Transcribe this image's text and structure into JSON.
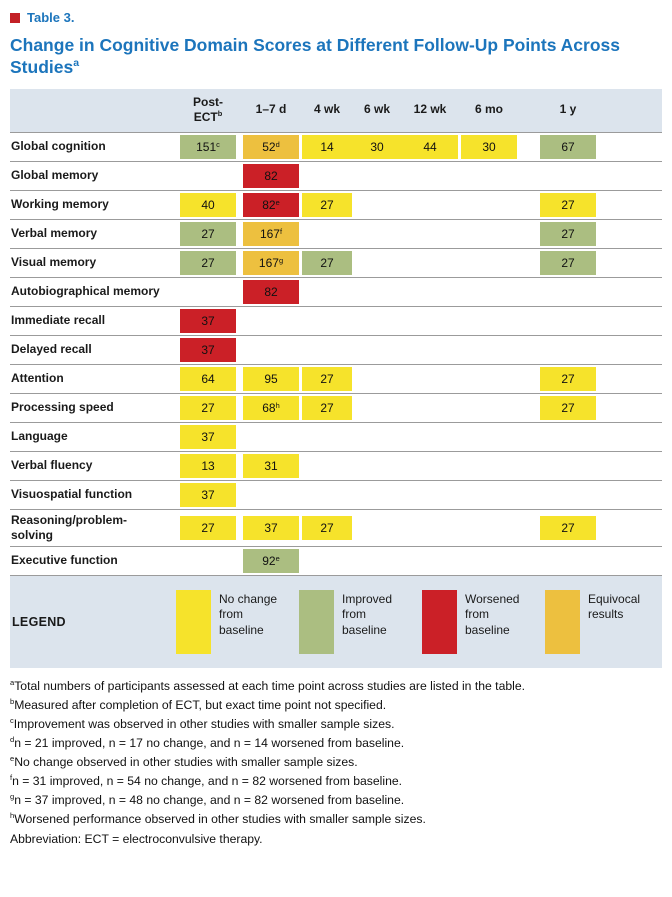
{
  "page": {
    "table_label": "Table 3.",
    "title": "Change in Cognitive Domain Scores at Different Follow-Up Points Across Studies",
    "title_sup": "a"
  },
  "colors": {
    "no_change": "#f6e32b",
    "improved": "#abbe81",
    "worsened": "#cb2027",
    "equivocal": "#edc03f",
    "band_bg": "#dce4ed",
    "title_blue": "#1c75bc",
    "marker_red": "#c32026"
  },
  "table": {
    "columns": [
      {
        "label": "Post-ECT",
        "sup": "b"
      },
      {
        "label": "1–7 d",
        "sup": ""
      },
      {
        "label": "4 wk",
        "sup": ""
      },
      {
        "label": "6 wk",
        "sup": ""
      },
      {
        "label": "12 wk",
        "sup": ""
      },
      {
        "label": "6 mo",
        "sup": ""
      },
      {
        "label": "1 y",
        "sup": ""
      }
    ],
    "rows": [
      {
        "label": "Global cognition",
        "cells": [
          {
            "value": "151",
            "sup": "c",
            "status": "improved"
          },
          {
            "value": "52",
            "sup": "d",
            "status": "equivocal"
          },
          {
            "value": "14",
            "sup": "",
            "status": "no_change"
          },
          {
            "value": "30",
            "sup": "",
            "status": "no_change"
          },
          {
            "value": "44",
            "sup": "",
            "status": "no_change"
          },
          {
            "value": "30",
            "sup": "",
            "status": "no_change"
          },
          {
            "value": "67",
            "sup": "",
            "status": "improved"
          }
        ]
      },
      {
        "label": "Global memory",
        "cells": [
          null,
          {
            "value": "82",
            "sup": "",
            "status": "worsened"
          },
          null,
          null,
          null,
          null,
          null
        ]
      },
      {
        "label": "Working memory",
        "cells": [
          {
            "value": "40",
            "sup": "",
            "status": "no_change"
          },
          {
            "value": "82",
            "sup": "e",
            "status": "worsened"
          },
          {
            "value": "27",
            "sup": "",
            "status": "no_change"
          },
          null,
          null,
          null,
          {
            "value": "27",
            "sup": "",
            "status": "no_change"
          }
        ]
      },
      {
        "label": "Verbal memory",
        "cells": [
          {
            "value": "27",
            "sup": "",
            "status": "improved"
          },
          {
            "value": "167",
            "sup": "f",
            "status": "equivocal"
          },
          null,
          null,
          null,
          null,
          {
            "value": "27",
            "sup": "",
            "status": "improved"
          }
        ]
      },
      {
        "label": "Visual memory",
        "cells": [
          {
            "value": "27",
            "sup": "",
            "status": "improved"
          },
          {
            "value": "167",
            "sup": "g",
            "status": "equivocal"
          },
          {
            "value": "27",
            "sup": "",
            "status": "improved"
          },
          null,
          null,
          null,
          {
            "value": "27",
            "sup": "",
            "status": "improved"
          }
        ]
      },
      {
        "label": "Autobiographical memory",
        "cells": [
          null,
          {
            "value": "82",
            "sup": "",
            "status": "worsened"
          },
          null,
          null,
          null,
          null,
          null
        ]
      },
      {
        "label": "Immediate recall",
        "cells": [
          {
            "value": "37",
            "sup": "",
            "status": "worsened"
          },
          null,
          null,
          null,
          null,
          null,
          null
        ]
      },
      {
        "label": "Delayed recall",
        "cells": [
          {
            "value": "37",
            "sup": "",
            "status": "worsened"
          },
          null,
          null,
          null,
          null,
          null,
          null
        ]
      },
      {
        "label": "Attention",
        "cells": [
          {
            "value": "64",
            "sup": "",
            "status": "no_change"
          },
          {
            "value": "95",
            "sup": "",
            "status": "no_change"
          },
          {
            "value": "27",
            "sup": "",
            "status": "no_change"
          },
          null,
          null,
          null,
          {
            "value": "27",
            "sup": "",
            "status": "no_change"
          }
        ]
      },
      {
        "label": "Processing speed",
        "cells": [
          {
            "value": "27",
            "sup": "",
            "status": "no_change"
          },
          {
            "value": "68",
            "sup": "h",
            "status": "no_change"
          },
          {
            "value": "27",
            "sup": "",
            "status": "no_change"
          },
          null,
          null,
          null,
          {
            "value": "27",
            "sup": "",
            "status": "no_change"
          }
        ]
      },
      {
        "label": "Language",
        "cells": [
          {
            "value": "37",
            "sup": "",
            "status": "no_change"
          },
          null,
          null,
          null,
          null,
          null,
          null
        ]
      },
      {
        "label": "Verbal fluency",
        "cells": [
          {
            "value": "13",
            "sup": "",
            "status": "no_change"
          },
          {
            "value": "31",
            "sup": "",
            "status": "no_change"
          },
          null,
          null,
          null,
          null,
          null
        ]
      },
      {
        "label": "Visuospatial function",
        "cells": [
          {
            "value": "37",
            "sup": "",
            "status": "no_change"
          },
          null,
          null,
          null,
          null,
          null,
          null
        ]
      },
      {
        "label": "Reasoning/problem-solving",
        "cells": [
          {
            "value": "27",
            "sup": "",
            "status": "no_change"
          },
          {
            "value": "37",
            "sup": "",
            "status": "no_change"
          },
          {
            "value": "27",
            "sup": "",
            "status": "no_change"
          },
          null,
          null,
          null,
          {
            "value": "27",
            "sup": "",
            "status": "no_change"
          }
        ]
      },
      {
        "label": "Executive function",
        "cells": [
          null,
          {
            "value": "92",
            "sup": "e",
            "status": "improved"
          },
          null,
          null,
          null,
          null,
          null
        ]
      }
    ]
  },
  "legend": {
    "label": "LEGEND",
    "items": [
      {
        "status": "no_change",
        "text": "No change from baseline"
      },
      {
        "status": "improved",
        "text": "Improved from baseline"
      },
      {
        "status": "worsened",
        "text": "Worsened from baseline"
      },
      {
        "status": "equivocal",
        "text": "Equivocal results"
      }
    ]
  },
  "footnotes": [
    {
      "sup": "a",
      "text": "Total numbers of participants assessed at each time point across studies are listed in the table."
    },
    {
      "sup": "b",
      "text": "Measured after completion of ECT, but exact time point not specified."
    },
    {
      "sup": "c",
      "text": "Improvement was observed in other studies with smaller sample sizes."
    },
    {
      "sup": "d",
      "text": "n = 21 improved, n = 17 no change, and n = 14 worsened from baseline."
    },
    {
      "sup": "e",
      "text": "No change observed in other studies with smaller sample sizes."
    },
    {
      "sup": "f",
      "text": "n = 31 improved, n = 54 no change, and n = 82 worsened from baseline."
    },
    {
      "sup": "g",
      "text": "n = 37 improved, n = 48 no change, and n = 82 worsened from baseline."
    },
    {
      "sup": "h",
      "text": "Worsened performance observed in other studies with smaller sample sizes."
    },
    {
      "sup": "",
      "text": "Abbreviation: ECT = electroconvulsive therapy."
    }
  ]
}
